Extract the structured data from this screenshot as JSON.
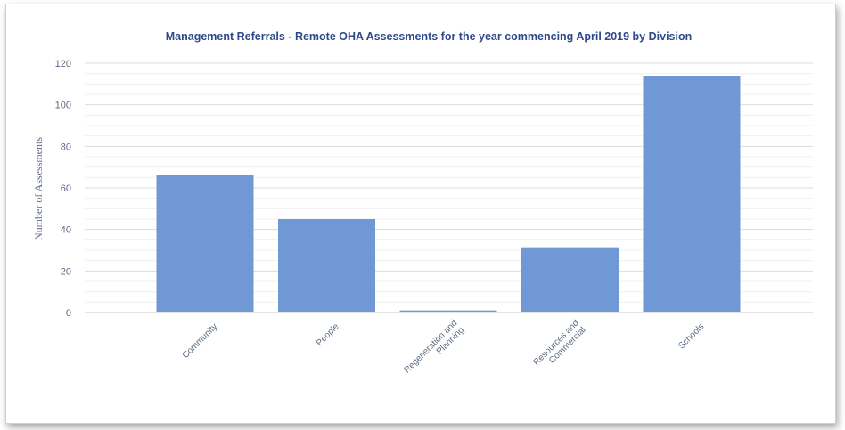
{
  "chart_data": {
    "type": "bar",
    "title": "Management Referrals - Remote OHA Assessments for the year commencing April 2019 by Division",
    "xlabel": "",
    "ylabel": "Number of Assessments",
    "ylim": [
      0,
      120
    ],
    "yticks": [
      0,
      20,
      40,
      60,
      80,
      100,
      120
    ],
    "grid": true,
    "categories": [
      [
        "Community"
      ],
      [
        "People"
      ],
      [
        "Regeneration and",
        "Planning"
      ],
      [
        "Resources and",
        "Commercial"
      ],
      [
        "Schools"
      ]
    ],
    "values": [
      66,
      45,
      1,
      31,
      114
    ],
    "colors": {
      "bar": "#7098d4",
      "title": "#2f4a8a",
      "axis_text": "#5a6b82",
      "grid": "#e3e3e3"
    }
  }
}
